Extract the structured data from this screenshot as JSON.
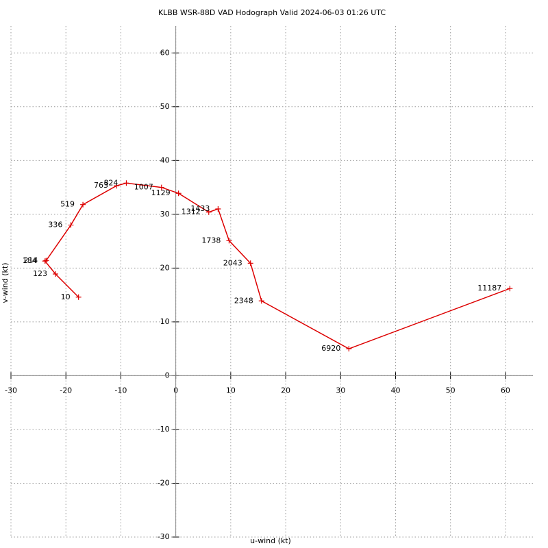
{
  "chart_data": {
    "type": "line",
    "title": "KLBB WSR-88D VAD Hodograph Valid 2024-06-03 01:26 UTC",
    "x_label": "u-wind (kt)",
    "y_label": "v-wind (kt)",
    "x": [
      -17.7,
      -21.9,
      -23.8,
      -23.6,
      -19.1,
      -16.9,
      -10.8,
      -9.0,
      -2.6,
      0.5,
      6.0,
      7.7,
      9.7,
      13.6,
      15.6,
      31.5,
      60.8
    ],
    "values": [
      14.6,
      18.9,
      21.3,
      21.4,
      28.0,
      31.8,
      35.3,
      35.8,
      35.0,
      33.9,
      30.4,
      31.0,
      25.1,
      20.9,
      13.9,
      5.0,
      16.2
    ],
    "labels": [
      10,
      123,
      184,
      214,
      336,
      519,
      763,
      824,
      1007,
      1129,
      1312,
      1433,
      1738,
      2043,
      2348,
      6920,
      11187
    ],
    "color": "#dd0000",
    "xlim": [
      -30,
      65
    ],
    "ylim": [
      -30,
      65
    ],
    "xticks": [
      -30,
      -20,
      -10,
      0,
      10,
      20,
      30,
      40,
      50,
      60
    ],
    "yticks": [
      -30,
      -20,
      -10,
      0,
      10,
      20,
      30,
      40,
      50,
      60
    ],
    "grid": true
  }
}
